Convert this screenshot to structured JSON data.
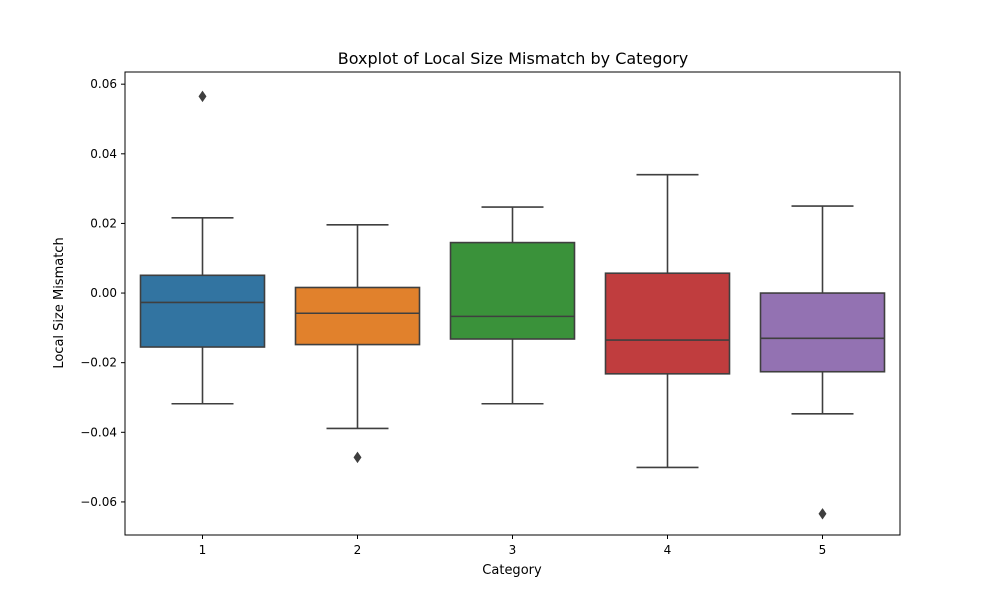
{
  "chart_data": {
    "type": "box",
    "title": "Boxplot of Local Size Mismatch by Category",
    "xlabel": "Category",
    "ylabel": "Local Size Mismatch",
    "ylim": [
      -0.0695,
      0.0635
    ],
    "yticks": [
      -0.06,
      -0.04,
      -0.02,
      0.0,
      0.02,
      0.04,
      0.06
    ],
    "ytick_labels": [
      "−0.06",
      "−0.04",
      "−0.02",
      "0.00",
      "0.02",
      "0.04",
      "0.06"
    ],
    "grid": false,
    "legend": false,
    "categories": [
      "1",
      "2",
      "3",
      "4",
      "5"
    ],
    "colors": [
      "#3274a1",
      "#e1812c",
      "#3a923a",
      "#c03d3e",
      "#9372b2"
    ],
    "edge_color": "#3f3f3f",
    "boxes": [
      {
        "category": "1",
        "whisker_low": -0.0318,
        "q1": -0.0155,
        "median": -0.0027,
        "q3": 0.0051,
        "whisker_high": 0.0216,
        "outliers": [
          0.0565
        ]
      },
      {
        "category": "2",
        "whisker_low": -0.0389,
        "q1": -0.0148,
        "median": -0.0058,
        "q3": 0.0016,
        "whisker_high": 0.0196,
        "outliers": [
          -0.0472
        ]
      },
      {
        "category": "3",
        "whisker_low": -0.0318,
        "q1": -0.0132,
        "median": -0.0067,
        "q3": 0.0145,
        "whisker_high": 0.0247,
        "outliers": []
      },
      {
        "category": "4",
        "whisker_low": -0.0501,
        "q1": -0.0232,
        "median": -0.0135,
        "q3": 0.0057,
        "whisker_high": 0.034,
        "outliers": []
      },
      {
        "category": "5",
        "whisker_low": -0.0347,
        "q1": -0.0226,
        "median": -0.013,
        "q3": 0.0,
        "whisker_high": 0.025,
        "outliers": [
          -0.0634
        ]
      }
    ]
  }
}
